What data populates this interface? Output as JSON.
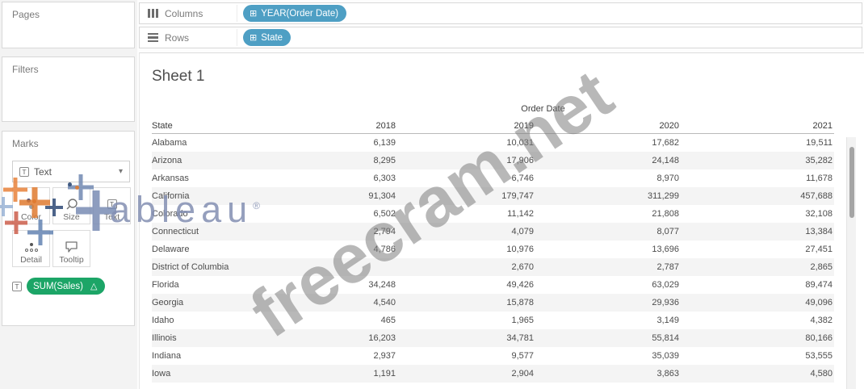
{
  "shelves": {
    "columns": {
      "label": "Columns",
      "pill": "YEAR(Order Date)"
    },
    "rows": {
      "label": "Rows",
      "pill": "State"
    }
  },
  "sidebar": {
    "pages": {
      "label": "Pages"
    },
    "filters": {
      "label": "Filters"
    },
    "marks": {
      "label": "Marks",
      "mark_type": {
        "label": "Text",
        "caret": "▾",
        "icon": "text-mark-icon"
      },
      "buttons": {
        "color": "Color",
        "size": "Size",
        "text": "Text",
        "detail": "Detail",
        "tooltip": "Tooltip"
      },
      "encoding_pill": {
        "label": "SUM(Sales)",
        "delta": "△",
        "prefix_icon": "text-encoding-icon"
      }
    }
  },
  "sheet": {
    "title": "Sheet 1",
    "table": {
      "field_label": "Order Date",
      "row_field": "State",
      "columns": [
        "2018",
        "2019",
        "2020",
        "2021"
      ],
      "rows": [
        {
          "state": "Alabama",
          "values": [
            "6,139",
            "10,031",
            "17,682",
            "19,511"
          ]
        },
        {
          "state": "Arizona",
          "values": [
            "8,295",
            "17,906",
            "24,148",
            "35,282"
          ]
        },
        {
          "state": "Arkansas",
          "values": [
            "6,303",
            "6,746",
            "8,970",
            "11,678"
          ]
        },
        {
          "state": "California",
          "values": [
            "91,304",
            "179,747",
            "311,299",
            "457,688"
          ]
        },
        {
          "state": "Colorado",
          "values": [
            "6,502",
            "11,142",
            "21,808",
            "32,108"
          ]
        },
        {
          "state": "Connecticut",
          "values": [
            "2,794",
            "4,079",
            "8,077",
            "13,384"
          ]
        },
        {
          "state": "Delaware",
          "values": [
            "4,786",
            "10,976",
            "13,696",
            "27,451"
          ]
        },
        {
          "state": "District of Columbia",
          "values": [
            "",
            "2,670",
            "2,787",
            "2,865"
          ]
        },
        {
          "state": "Florida",
          "values": [
            "34,248",
            "49,426",
            "63,029",
            "89,474"
          ]
        },
        {
          "state": "Georgia",
          "values": [
            "4,540",
            "15,878",
            "29,936",
            "49,096"
          ]
        },
        {
          "state": "Idaho",
          "values": [
            "465",
            "1,965",
            "3,149",
            "4,382"
          ]
        },
        {
          "state": "Illinois",
          "values": [
            "16,203",
            "34,781",
            "55,814",
            "80,166"
          ]
        },
        {
          "state": "Indiana",
          "values": [
            "2,937",
            "9,577",
            "35,039",
            "53,555"
          ]
        },
        {
          "state": "Iowa",
          "values": [
            "1,191",
            "2,904",
            "3,863",
            "4,580"
          ]
        }
      ]
    }
  },
  "watermarks": {
    "site": "freecram.net",
    "logo_text": "ableau",
    "logo_reg": "®"
  },
  "colors": {
    "dimension_pill": "#4E9FC4",
    "measure_pill": "#1CA567",
    "watermark_gray": "#7D7D7D",
    "logo_blue": "#8792B8"
  }
}
